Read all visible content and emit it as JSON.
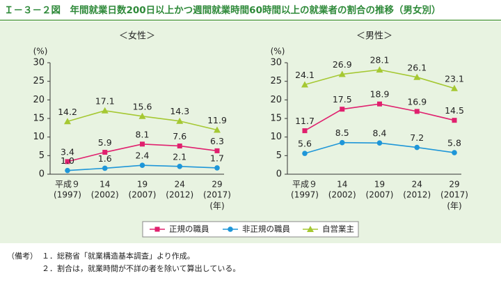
{
  "header": {
    "title": "Ｉ－３－２図　年間就業日数200日以上かつ週間就業時間60時間以上の就業者の割合の推移（男女別）"
  },
  "chart_data": [
    {
      "type": "line",
      "subtitle": "＜女性＞",
      "y_unit": "(%)",
      "x_unit": "(年)",
      "categories": [
        [
          "平成９",
          "(1997)"
        ],
        [
          "14",
          "(2002)"
        ],
        [
          "19",
          "(2007)"
        ],
        [
          "24",
          "(2012)"
        ],
        [
          "29",
          "(2017)"
        ]
      ],
      "ylim": [
        0,
        30
      ],
      "yticks": [
        0,
        5,
        10,
        15,
        20,
        25,
        30
      ],
      "grid": false,
      "series": [
        {
          "name": "正規の職員",
          "color": "#e0206e",
          "marker": "square",
          "values": [
            3.4,
            5.9,
            8.1,
            7.6,
            6.3
          ],
          "value_labels": [
            "3.4",
            "5.9",
            "8.1",
            "7.6",
            "6.3"
          ]
        },
        {
          "name": "非正規の職員",
          "color": "#1e96d8",
          "marker": "circle",
          "values": [
            1.0,
            1.6,
            2.4,
            2.1,
            1.7
          ],
          "value_labels": [
            "1.0",
            "1.6",
            "2.4",
            "2.1",
            "1.7"
          ]
        },
        {
          "name": "自営業主",
          "color": "#a5c832",
          "marker": "triangle",
          "values": [
            14.2,
            17.1,
            15.6,
            14.3,
            11.9
          ],
          "value_labels": [
            "14.2",
            "17.1",
            "15.6",
            "14.3",
            "11.9"
          ]
        }
      ]
    },
    {
      "type": "line",
      "subtitle": "＜男性＞",
      "y_unit": "(%)",
      "x_unit": "(年)",
      "categories": [
        [
          "平成９",
          "(1997)"
        ],
        [
          "14",
          "(2002)"
        ],
        [
          "19",
          "(2007)"
        ],
        [
          "24",
          "(2012)"
        ],
        [
          "29",
          "(2017)"
        ]
      ],
      "ylim": [
        0,
        30
      ],
      "yticks": [
        0,
        5,
        10,
        15,
        20,
        25,
        30
      ],
      "grid": false,
      "series": [
        {
          "name": "正規の職員",
          "color": "#e0206e",
          "marker": "square",
          "values": [
            11.7,
            17.5,
            18.9,
            16.9,
            14.5
          ],
          "value_labels": [
            "11.7",
            "17.5",
            "18.9",
            "16.9",
            "14.5"
          ]
        },
        {
          "name": "非正規の職員",
          "color": "#1e96d8",
          "marker": "circle",
          "values": [
            5.6,
            8.5,
            8.4,
            7.2,
            5.8
          ],
          "value_labels": [
            "5.6",
            "8.5",
            "8.4",
            "7.2",
            "5.8"
          ]
        },
        {
          "name": "自営業主",
          "color": "#a5c832",
          "marker": "triangle",
          "values": [
            24.1,
            26.9,
            28.1,
            26.1,
            23.1
          ],
          "value_labels": [
            "24.1",
            "26.9",
            "28.1",
            "26.1",
            "23.1"
          ]
        }
      ]
    }
  ],
  "notes": {
    "label": "（備考）",
    "items": [
      "１．総務省「就業構造基本調査」より作成。",
      "２．割合は，就業時間が不詳の者を除いて算出している。"
    ]
  }
}
